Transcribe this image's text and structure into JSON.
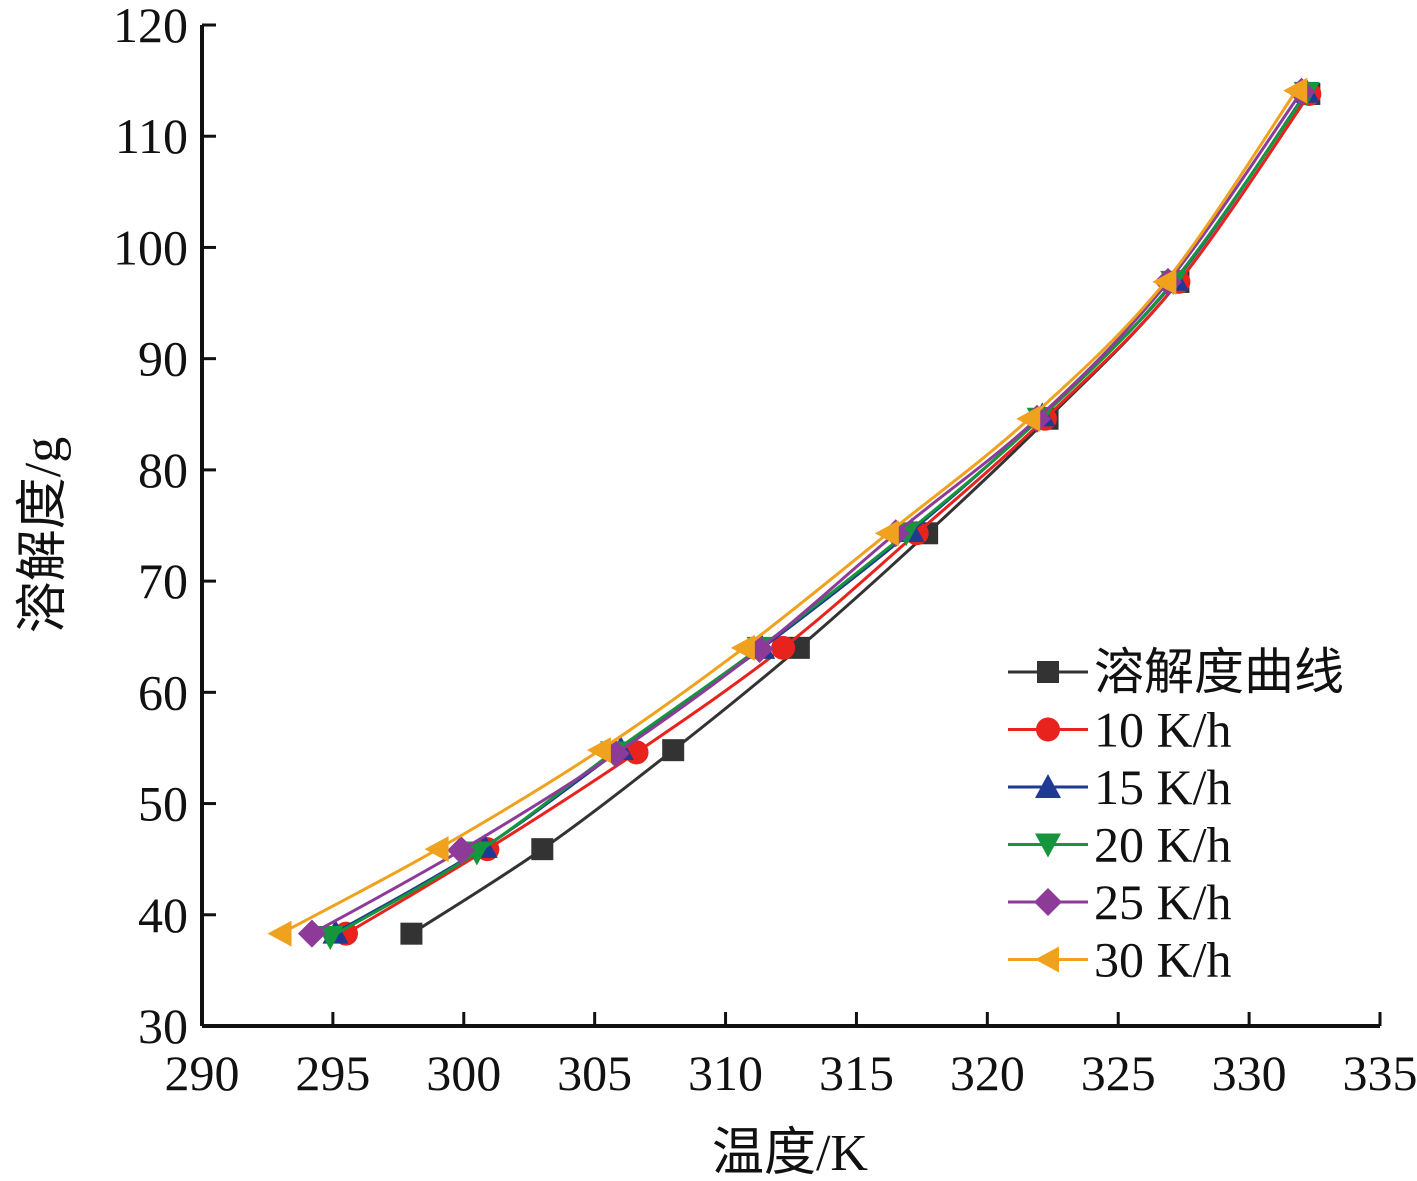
{
  "chart_data": {
    "type": "line",
    "xlabel": "温度/K",
    "ylabel": "溶解度/g",
    "xlim": [
      290,
      335
    ],
    "ylim": [
      30,
      120
    ],
    "xticks": [
      "290",
      "295",
      "300",
      "305",
      "310",
      "315",
      "320",
      "325",
      "330",
      "335"
    ],
    "yticks": [
      "30",
      "40",
      "50",
      "60",
      "70",
      "80",
      "90",
      "100",
      "110",
      "120"
    ],
    "grid": false,
    "legend_position": "bottom-right",
    "series": [
      {
        "name": "溶解度曲线",
        "color": "#333333",
        "marker": "square",
        "points": [
          [
            298.0,
            38.3
          ],
          [
            303.0,
            45.9
          ],
          [
            308.0,
            54.8
          ],
          [
            312.8,
            64.0
          ],
          [
            317.7,
            74.3
          ],
          [
            322.3,
            84.6
          ],
          [
            327.3,
            96.9
          ],
          [
            332.3,
            113.8
          ]
        ]
      },
      {
        "name": "10 K/h",
        "color": "#e8231e",
        "marker": "circle",
        "points": [
          [
            295.5,
            38.3
          ],
          [
            300.9,
            45.9
          ],
          [
            306.6,
            54.6
          ],
          [
            312.2,
            64.0
          ],
          [
            317.3,
            74.3
          ],
          [
            322.2,
            84.6
          ],
          [
            327.3,
            96.9
          ],
          [
            332.3,
            113.8
          ]
        ]
      },
      {
        "name": "15 K/h",
        "color": "#1f3a93",
        "marker": "triangle-up",
        "points": [
          [
            295.1,
            38.4
          ],
          [
            300.8,
            46.1
          ],
          [
            306.0,
            54.9
          ],
          [
            311.4,
            64.0
          ],
          [
            317.1,
            74.5
          ],
          [
            322.1,
            84.9
          ],
          [
            327.2,
            97.1
          ],
          [
            332.2,
            114.0
          ]
        ]
      },
      {
        "name": "20 K/h",
        "color": "#15963c",
        "marker": "triangle-down",
        "points": [
          [
            294.9,
            38.0
          ],
          [
            300.5,
            45.6
          ],
          [
            305.7,
            54.6
          ],
          [
            311.3,
            64.0
          ],
          [
            316.9,
            74.3
          ],
          [
            322.0,
            84.6
          ],
          [
            327.1,
            96.9
          ],
          [
            332.2,
            113.9
          ]
        ]
      },
      {
        "name": "25 K/h",
        "color": "#8e3a99",
        "marker": "diamond",
        "points": [
          [
            294.2,
            38.3
          ],
          [
            299.9,
            45.8
          ],
          [
            305.8,
            54.5
          ],
          [
            311.3,
            63.9
          ],
          [
            316.5,
            74.3
          ],
          [
            321.9,
            84.6
          ],
          [
            326.9,
            96.9
          ],
          [
            332.0,
            114.0
          ]
        ]
      },
      {
        "name": "30 K/h",
        "color": "#f0a21e",
        "marker": "triangle-left",
        "points": [
          [
            293.0,
            38.3
          ],
          [
            299.0,
            45.9
          ],
          [
            305.2,
            54.8
          ],
          [
            310.7,
            64.0
          ],
          [
            316.2,
            74.3
          ],
          [
            321.6,
            84.6
          ],
          [
            326.8,
            96.9
          ],
          [
            331.8,
            114.1
          ]
        ]
      }
    ]
  }
}
